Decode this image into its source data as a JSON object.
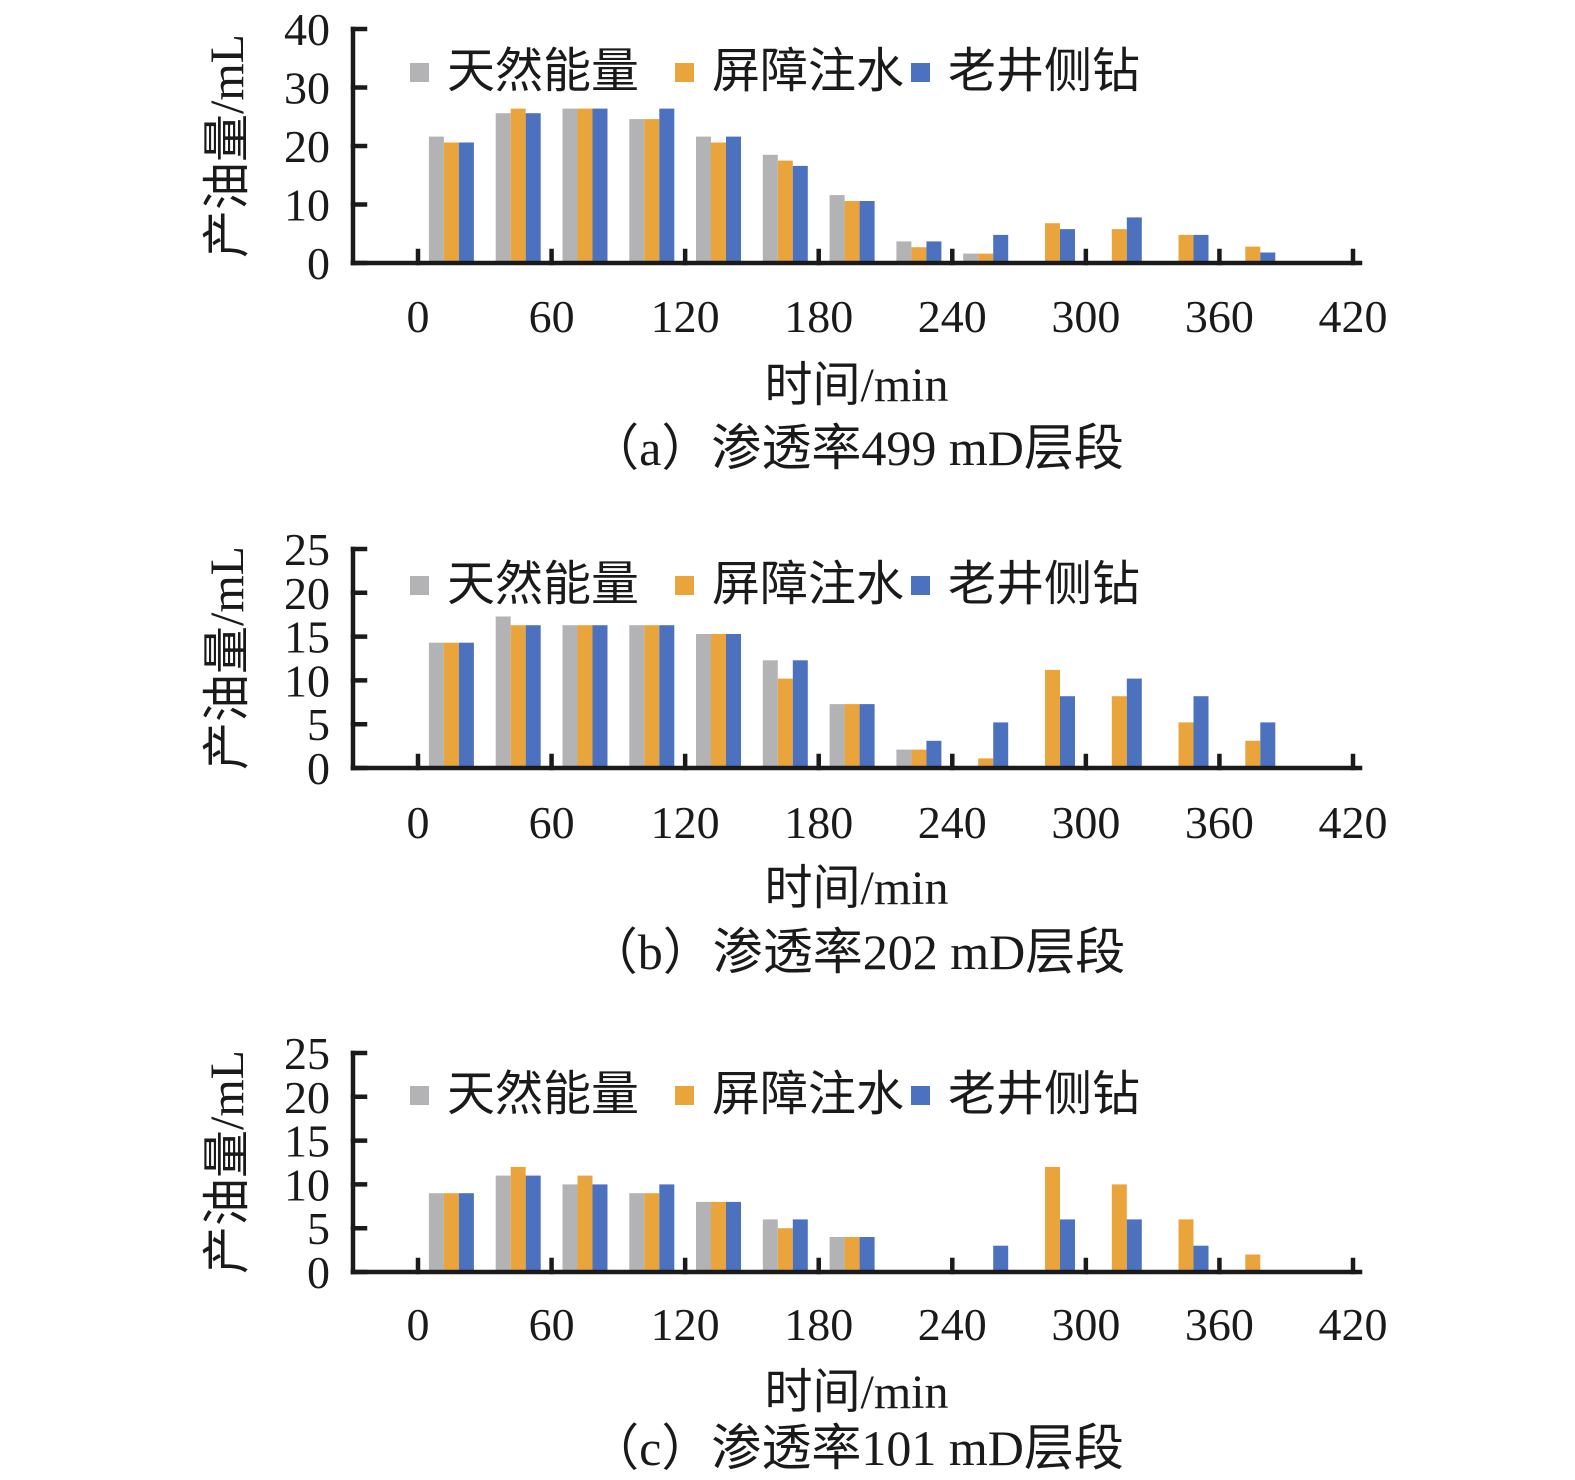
{
  "page": {
    "background": "#ffffff",
    "text_color": "#1a1a1a"
  },
  "legend": {
    "position": "top-inside",
    "items": [
      {
        "label": "天然能量",
        "color": "#B3B3B5"
      },
      {
        "label": "屏障注水",
        "color": "#E9A53C"
      },
      {
        "label": "老井侧钻",
        "color": "#4C72BF"
      }
    ]
  },
  "chart_data": [
    {
      "type": "bar",
      "panel": "a",
      "caption": "（a）渗透率499 mD层段",
      "xlabel": "时间/min",
      "ylabel": "产油量/mL",
      "grid": false,
      "xlim": [
        0,
        420
      ],
      "ylim": [
        0,
        40
      ],
      "xticks": [
        0,
        60,
        120,
        180,
        240,
        300,
        360,
        420
      ],
      "yticks": [
        0,
        10,
        20,
        30,
        40
      ],
      "x": [
        15,
        45,
        75,
        105,
        135,
        165,
        195,
        225,
        255,
        285,
        315,
        345,
        375
      ],
      "series": [
        {
          "name": "天然能量",
          "color": "#B3B3B5",
          "values": [
            21.6,
            25.6,
            26.4,
            24.6,
            21.6,
            18.5,
            11.6,
            3.7,
            1.6,
            0,
            0,
            0,
            0
          ]
        },
        {
          "name": "屏障注水",
          "color": "#E9A53C",
          "values": [
            20.6,
            26.4,
            26.4,
            24.6,
            20.6,
            17.5,
            10.6,
            2.7,
            1.6,
            6.8,
            5.8,
            4.8,
            2.8
          ]
        },
        {
          "name": "老井侧钻",
          "color": "#4C72BF",
          "values": [
            20.6,
            25.6,
            26.4,
            26.4,
            21.6,
            16.6,
            10.6,
            3.7,
            4.8,
            5.8,
            7.8,
            4.8,
            1.8
          ]
        }
      ]
    },
    {
      "type": "bar",
      "panel": "b",
      "caption": "（b）渗透率202 mD层段",
      "xlabel": "时间/min",
      "ylabel": "产油量/mL",
      "grid": false,
      "xlim": [
        0,
        420
      ],
      "ylim": [
        0,
        25
      ],
      "xticks": [
        0,
        60,
        120,
        180,
        240,
        300,
        360,
        420
      ],
      "yticks": [
        0,
        5,
        10,
        15,
        20,
        25
      ],
      "x": [
        15,
        45,
        75,
        105,
        135,
        165,
        195,
        225,
        255,
        285,
        315,
        345,
        375
      ],
      "series": [
        {
          "name": "天然能量",
          "color": "#B3B3B5",
          "values": [
            14.3,
            17.3,
            16.3,
            16.3,
            15.3,
            12.3,
            7.3,
            2.1,
            0,
            0,
            0,
            0,
            0
          ]
        },
        {
          "name": "屏障注水",
          "color": "#E9A53C",
          "values": [
            14.3,
            16.3,
            16.3,
            16.3,
            15.3,
            10.2,
            7.3,
            2.1,
            1.1,
            11.2,
            8.2,
            5.2,
            3.1
          ]
        },
        {
          "name": "老井侧钻",
          "color": "#4C72BF",
          "values": [
            14.3,
            16.3,
            16.3,
            16.3,
            15.3,
            12.3,
            7.3,
            3.1,
            5.2,
            8.2,
            10.2,
            8.2,
            5.2
          ]
        }
      ]
    },
    {
      "type": "bar",
      "panel": "c",
      "caption": "（c）渗透率101 mD层段",
      "xlabel": "时间/min",
      "ylabel": "产油量/mL",
      "grid": false,
      "xlim": [
        0,
        420
      ],
      "ylim": [
        0,
        25
      ],
      "xticks": [
        0,
        60,
        120,
        180,
        240,
        300,
        360,
        420
      ],
      "yticks": [
        0,
        5,
        10,
        15,
        20,
        25
      ],
      "x": [
        15,
        45,
        75,
        105,
        135,
        165,
        195,
        225,
        255,
        285,
        315,
        345,
        375
      ],
      "series": [
        {
          "name": "天然能量",
          "color": "#B3B3B5",
          "values": [
            9,
            11,
            10,
            9,
            8,
            6,
            4,
            0,
            0,
            0,
            0,
            0,
            0
          ]
        },
        {
          "name": "屏障注水",
          "color": "#E9A53C",
          "values": [
            9,
            12,
            11,
            9,
            8,
            5,
            4,
            0,
            0,
            12,
            10,
            6,
            2
          ]
        },
        {
          "name": "老井侧钻",
          "color": "#4C72BF",
          "values": [
            9,
            11,
            10,
            10,
            8,
            6,
            4,
            0,
            3,
            6,
            6,
            3,
            0
          ]
        }
      ]
    }
  ]
}
